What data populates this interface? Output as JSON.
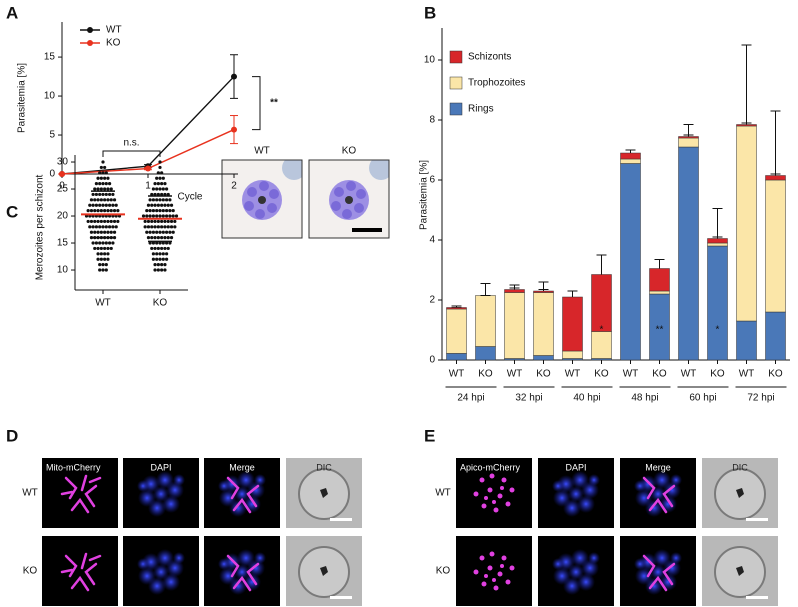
{
  "panel_labels": [
    "A",
    "B",
    "C",
    "D",
    "E"
  ],
  "chart_data": [
    {
      "type": "line",
      "xlabel": "Cycle",
      "ylabel": "Parasitemia [%]",
      "x": [
        0,
        1,
        2
      ],
      "xlim": [
        0,
        2
      ],
      "xticks": [
        0,
        1,
        2
      ],
      "ylim": [
        0,
        19.5
      ],
      "yticks": [
        0,
        5,
        10,
        15
      ],
      "legend": "upper left",
      "annotation": "**",
      "series": [
        {
          "name": "WT",
          "color": "#111111",
          "values": [
            0,
            1,
            12.5
          ],
          "errors": [
            0,
            0.2,
            2.8
          ]
        },
        {
          "name": "KO",
          "color": "#e8321e",
          "values": [
            0,
            0.7,
            5.7
          ],
          "errors": [
            0,
            0.15,
            1.8
          ]
        }
      ]
    },
    {
      "type": "bar",
      "stacked": true,
      "ylabel": "Parasitemia [%]",
      "categories": [
        "WT",
        "KO",
        "WT",
        "KO",
        "WT",
        "KO",
        "WT",
        "KO",
        "WT",
        "KO",
        "WT",
        "KO"
      ],
      "groups": [
        "24 hpi",
        "32 hpi",
        "40 hpi",
        "48 hpi",
        "60 hpi",
        "72 hpi"
      ],
      "ylim": [
        0,
        11
      ],
      "yticks": [
        0,
        2,
        4,
        6,
        8,
        10
      ],
      "legend": "upper left",
      "series": [
        {
          "name": "Rings",
          "color": "#4a78b8",
          "values": [
            0.22,
            0.45,
            0.05,
            0.15,
            0.05,
            0.05,
            6.55,
            2.2,
            7.1,
            3.8,
            1.3,
            1.6
          ],
          "errors": [
            0.1,
            0.5,
            0.05,
            0.1,
            0.05,
            0.05,
            0.1,
            0.05,
            0.1,
            0.3,
            0.85,
            1.1
          ]
        },
        {
          "name": "Trophozoites",
          "color": "#fbe6a8",
          "values": [
            1.48,
            1.7,
            2.2,
            2.1,
            0.25,
            0.9,
            0.15,
            0.1,
            0.3,
            0.1,
            6.5,
            4.4
          ],
          "errors": [
            0.05,
            0.4,
            0.25,
            0.35,
            0.2,
            0.3,
            0.05,
            0.05,
            0.1,
            0.05,
            2.7,
            2.3
          ]
        },
        {
          "name": "Schizonts",
          "color": "#d7262a",
          "values": [
            0.05,
            0,
            0.1,
            0.05,
            1.8,
            1.9,
            0.2,
            0.75,
            0.05,
            0.15,
            0.05,
            0.15
          ],
          "errors": [
            0.05,
            0,
            0.05,
            0.05,
            0.2,
            0.65,
            0.1,
            0.3,
            0.4,
            1.0,
            0.05,
            0.05
          ]
        }
      ],
      "annotations": [
        {
          "text": "*",
          "category": 5
        },
        {
          "text": "**",
          "category": 7
        },
        {
          "text": "*",
          "category": 9
        }
      ]
    },
    {
      "type": "dot",
      "ylabel": "Merozoites per schizont",
      "categories": [
        "WT",
        "KO"
      ],
      "ylim": [
        6.3,
        31.3
      ],
      "yticks": [
        10,
        15,
        20,
        25,
        30
      ],
      "levels": [
        10,
        11,
        12,
        13,
        14,
        15,
        16,
        17,
        18,
        19,
        20,
        21,
        22,
        23,
        24,
        25,
        26,
        27,
        28,
        29,
        30
      ],
      "counts": [
        [
          3,
          3,
          4,
          4,
          6,
          7,
          8,
          8,
          9,
          10,
          11,
          10,
          9,
          8,
          7,
          6,
          5,
          4,
          3,
          2,
          1
        ],
        [
          4,
          4,
          5,
          5,
          6,
          7,
          8,
          9,
          10,
          10,
          11,
          9,
          8,
          7,
          6,
          5,
          4,
          3,
          2,
          1,
          1
        ]
      ],
      "means": [
        20.3,
        19.5
      ],
      "sd": [
        4.3,
        4.2
      ],
      "mean_color": "#e8321e",
      "annotation": "n.s."
    }
  ],
  "micrograph_C": {
    "labels": [
      "WT",
      "KO"
    ]
  },
  "micrograph_D": {
    "columns": [
      "Mito-mCherry",
      "DAPI",
      "Merge",
      "DIC"
    ],
    "rows": [
      "WT",
      "KO"
    ]
  },
  "micrograph_E": {
    "columns": [
      "Apico-mCherry",
      "DAPI",
      "Merge",
      "DIC"
    ],
    "rows": [
      "WT",
      "KO"
    ]
  }
}
